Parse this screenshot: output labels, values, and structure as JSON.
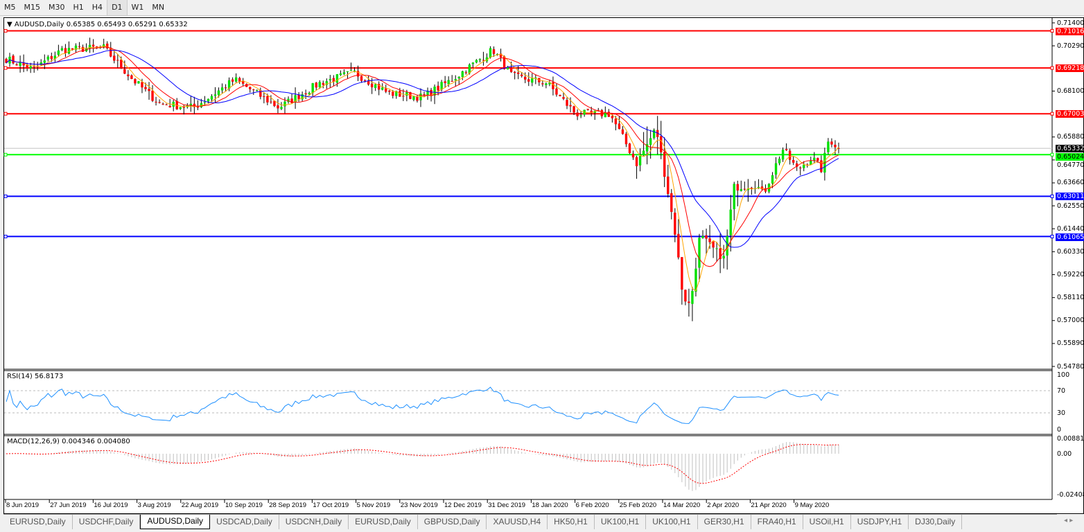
{
  "toolbar": {
    "timeframes": [
      "M5",
      "M15",
      "M30",
      "H1",
      "H4",
      "D1",
      "W1",
      "MN"
    ],
    "selected": "D1"
  },
  "chart": {
    "header": "AUDUSD,Daily  0.65385 0.65493 0.65291 0.65332",
    "symbol": "AUDUSD,Daily",
    "ohlc": {
      "open": "0.65385",
      "high": "0.65493",
      "low": "0.65291",
      "close": "0.65332"
    },
    "price_axis": [
      "0.71400",
      "0.70290",
      "0.68100",
      "0.65880",
      "0.64770",
      "0.63660",
      "0.62550",
      "0.61440",
      "0.60330",
      "0.59220",
      "0.58110",
      "0.57000",
      "0.55890",
      "0.54780"
    ],
    "current_price": "0.65332",
    "hlines": [
      {
        "value": "0.71016",
        "color": "#ff0000"
      },
      {
        "value": "0.69218",
        "color": "#ff0000"
      },
      {
        "value": "0.67003",
        "color": "#ff0000"
      },
      {
        "value": "0.65024",
        "color": "#00ff00"
      },
      {
        "value": "0.63011",
        "color": "#0000ff"
      },
      {
        "value": "0.61065",
        "color": "#0000ff"
      }
    ],
    "colors": {
      "bull": "#00e000",
      "bear": "#ff0000",
      "ma_fast": "#ffa500",
      "ma_mid": "#ff0000",
      "ma_slow": "#0000ff"
    },
    "date_axis": [
      "8 Jun 2019",
      "27 Jun 2019",
      "16 Jul 2019",
      "3 Aug 2019",
      "22 Aug 2019",
      "10 Sep 2019",
      "28 Sep 2019",
      "17 Oct 2019",
      "5 Nov 2019",
      "23 Nov 2019",
      "12 Dec 2019",
      "31 Dec 2019",
      "18 Jan 2020",
      "6 Feb 2020",
      "25 Feb 2020",
      "14 Mar 2020",
      "2 Apr 2020",
      "21 Apr 2020",
      "9 May 2020"
    ]
  },
  "rsi": {
    "label": "RSI(14) 56.8173",
    "levels": [
      "100",
      "70",
      "30",
      "0"
    ],
    "color": "#1e90ff"
  },
  "macd": {
    "label": "MACD(12,26,9) 0.004346 0.004080",
    "levels": [
      "0.008815",
      "0.00",
      "-0.024082"
    ]
  },
  "chart_data": {
    "type": "candlestick",
    "symbol": "AUDUSD",
    "timeframe": "Daily",
    "ylim": [
      0.5478,
      0.714
    ],
    "close_path": [
      [
        "2019-06-08",
        0.6966
      ],
      [
        "2019-06-19",
        0.6915
      ],
      [
        "2019-07-01",
        0.701
      ],
      [
        "2019-07-18",
        0.702
      ],
      [
        "2019-07-30",
        0.6865
      ],
      [
        "2019-08-10",
        0.675
      ],
      [
        "2019-08-24",
        0.673
      ],
      [
        "2019-09-10",
        0.6865
      ],
      [
        "2019-09-28",
        0.673
      ],
      [
        "2019-10-15",
        0.685
      ],
      [
        "2019-10-29",
        0.69
      ],
      [
        "2019-11-12",
        0.68
      ],
      [
        "2019-11-26",
        0.678
      ],
      [
        "2019-12-08",
        0.6865
      ],
      [
        "2019-12-25",
        0.701
      ],
      [
        "2020-01-02",
        0.688
      ],
      [
        "2020-01-16",
        0.685
      ],
      [
        "2020-01-28",
        0.67
      ],
      [
        "2020-02-11",
        0.67
      ],
      [
        "2020-02-22",
        0.646
      ],
      [
        "2020-03-01",
        0.663
      ],
      [
        "2020-03-05",
        0.638
      ],
      [
        "2020-03-09",
        0.611
      ],
      [
        "2020-03-12",
        0.582
      ],
      [
        "2020-03-15",
        0.577
      ],
      [
        "2020-03-19",
        0.611
      ],
      [
        "2020-03-25",
        0.604
      ],
      [
        "2020-03-29",
        0.6
      ],
      [
        "2020-04-02",
        0.6345
      ],
      [
        "2020-04-11",
        0.636
      ],
      [
        "2020-04-14",
        0.631
      ],
      [
        "2020-04-22",
        0.653
      ],
      [
        "2020-04-28",
        0.643
      ],
      [
        "2020-05-04",
        0.649
      ],
      [
        "2020-05-08",
        0.643
      ],
      [
        "2020-05-11",
        0.658
      ],
      [
        "2020-05-15",
        0.65332
      ]
    ]
  },
  "tabs": [
    "EURUSD,Daily",
    "USDCHF,Daily",
    "AUDUSD,Daily",
    "USDCAD,Daily",
    "USDCNH,Daily",
    "EURUSD,Daily",
    "GBPUSD,Daily",
    "XAUUSD,H4",
    "HK50,H1",
    "UK100,H1",
    "UK100,H1",
    "GER30,H1",
    "FRA40,H1",
    "USOil,H1",
    "USDJPY,H1",
    "DJ30,Daily"
  ],
  "active_tab": "AUDUSD,Daily"
}
